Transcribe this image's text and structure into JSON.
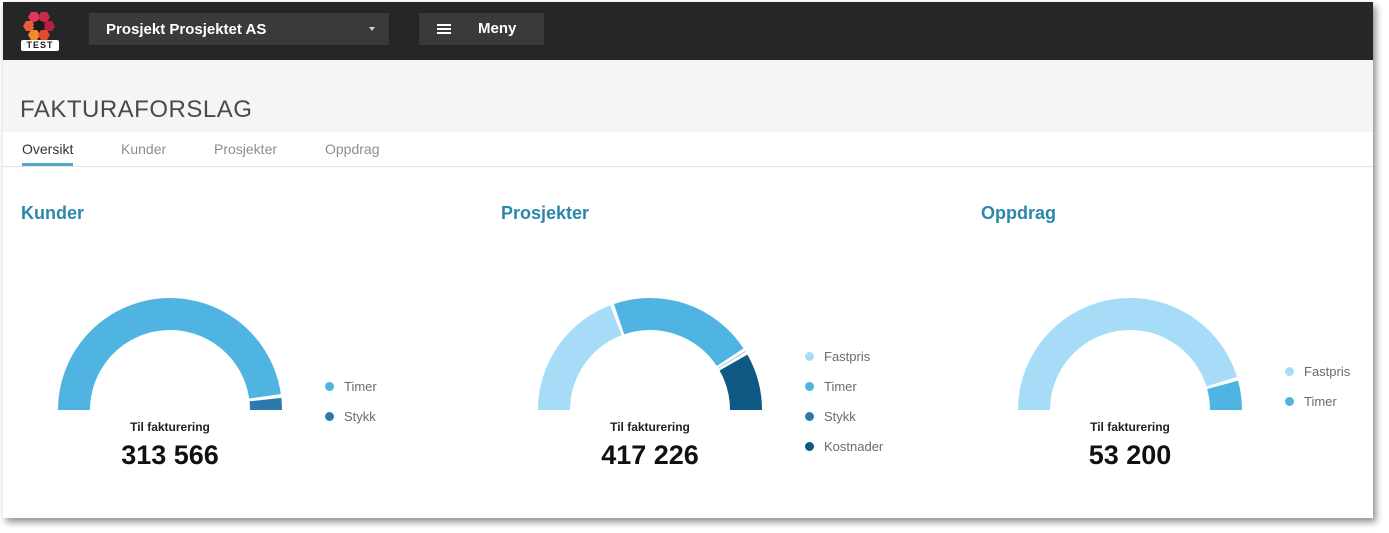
{
  "header": {
    "logo_badge": "TEST",
    "project_select_value": "Prosjekt Prosjektet AS",
    "menu_label": "Meny"
  },
  "page": {
    "title": "FAKTURAFORSLAG",
    "tabs": [
      {
        "label": "Oversikt",
        "active": true
      },
      {
        "label": "Kunder",
        "active": false
      },
      {
        "label": "Prosjekter",
        "active": false
      },
      {
        "label": "Oppdrag",
        "active": false
      }
    ]
  },
  "colors": {
    "fastpris": "#a6dcf7",
    "timer": "#4fb4e2",
    "stykk": "#2a7ab0",
    "kostnader": "#0f5a85",
    "section_title": "#2c87ad",
    "tab_underline": "#4fa9c9"
  },
  "panels": [
    {
      "title": "Kunder",
      "caption": "Til fakturering",
      "total": "313 566",
      "legend": [
        {
          "label": "Timer",
          "color_key": "timer"
        },
        {
          "label": "Stykk",
          "color_key": "stykk"
        }
      ]
    },
    {
      "title": "Prosjekter",
      "caption": "Til fakturering",
      "total": "417 226",
      "legend": [
        {
          "label": "Fastpris",
          "color_key": "fastpris"
        },
        {
          "label": "Timer",
          "color_key": "timer"
        },
        {
          "label": "Stykk",
          "color_key": "stykk"
        },
        {
          "label": "Kostnader",
          "color_key": "kostnader"
        }
      ]
    },
    {
      "title": "Oppdrag",
      "caption": "Til fakturering",
      "total": "53 200",
      "legend": [
        {
          "label": "Fastpris",
          "color_key": "fastpris"
        },
        {
          "label": "Timer",
          "color_key": "timer"
        }
      ]
    }
  ],
  "chart_data": [
    {
      "type": "pie",
      "variant": "semi-donut",
      "series": [
        {
          "name": "Timer",
          "fraction": 0.96
        },
        {
          "name": "Stykk",
          "fraction": 0.04
        }
      ]
    },
    {
      "type": "pie",
      "variant": "semi-donut",
      "series": [
        {
          "name": "Fastpris",
          "fraction": 0.39
        },
        {
          "name": "Timer",
          "fraction": 0.43
        },
        {
          "name": "Stykk",
          "fraction": 0.01
        },
        {
          "name": "Kostnader",
          "fraction": 0.17
        }
      ]
    },
    {
      "type": "pie",
      "variant": "semi-donut",
      "series": [
        {
          "name": "Fastpris",
          "fraction": 0.91
        },
        {
          "name": "Timer",
          "fraction": 0.09
        }
      ]
    }
  ]
}
